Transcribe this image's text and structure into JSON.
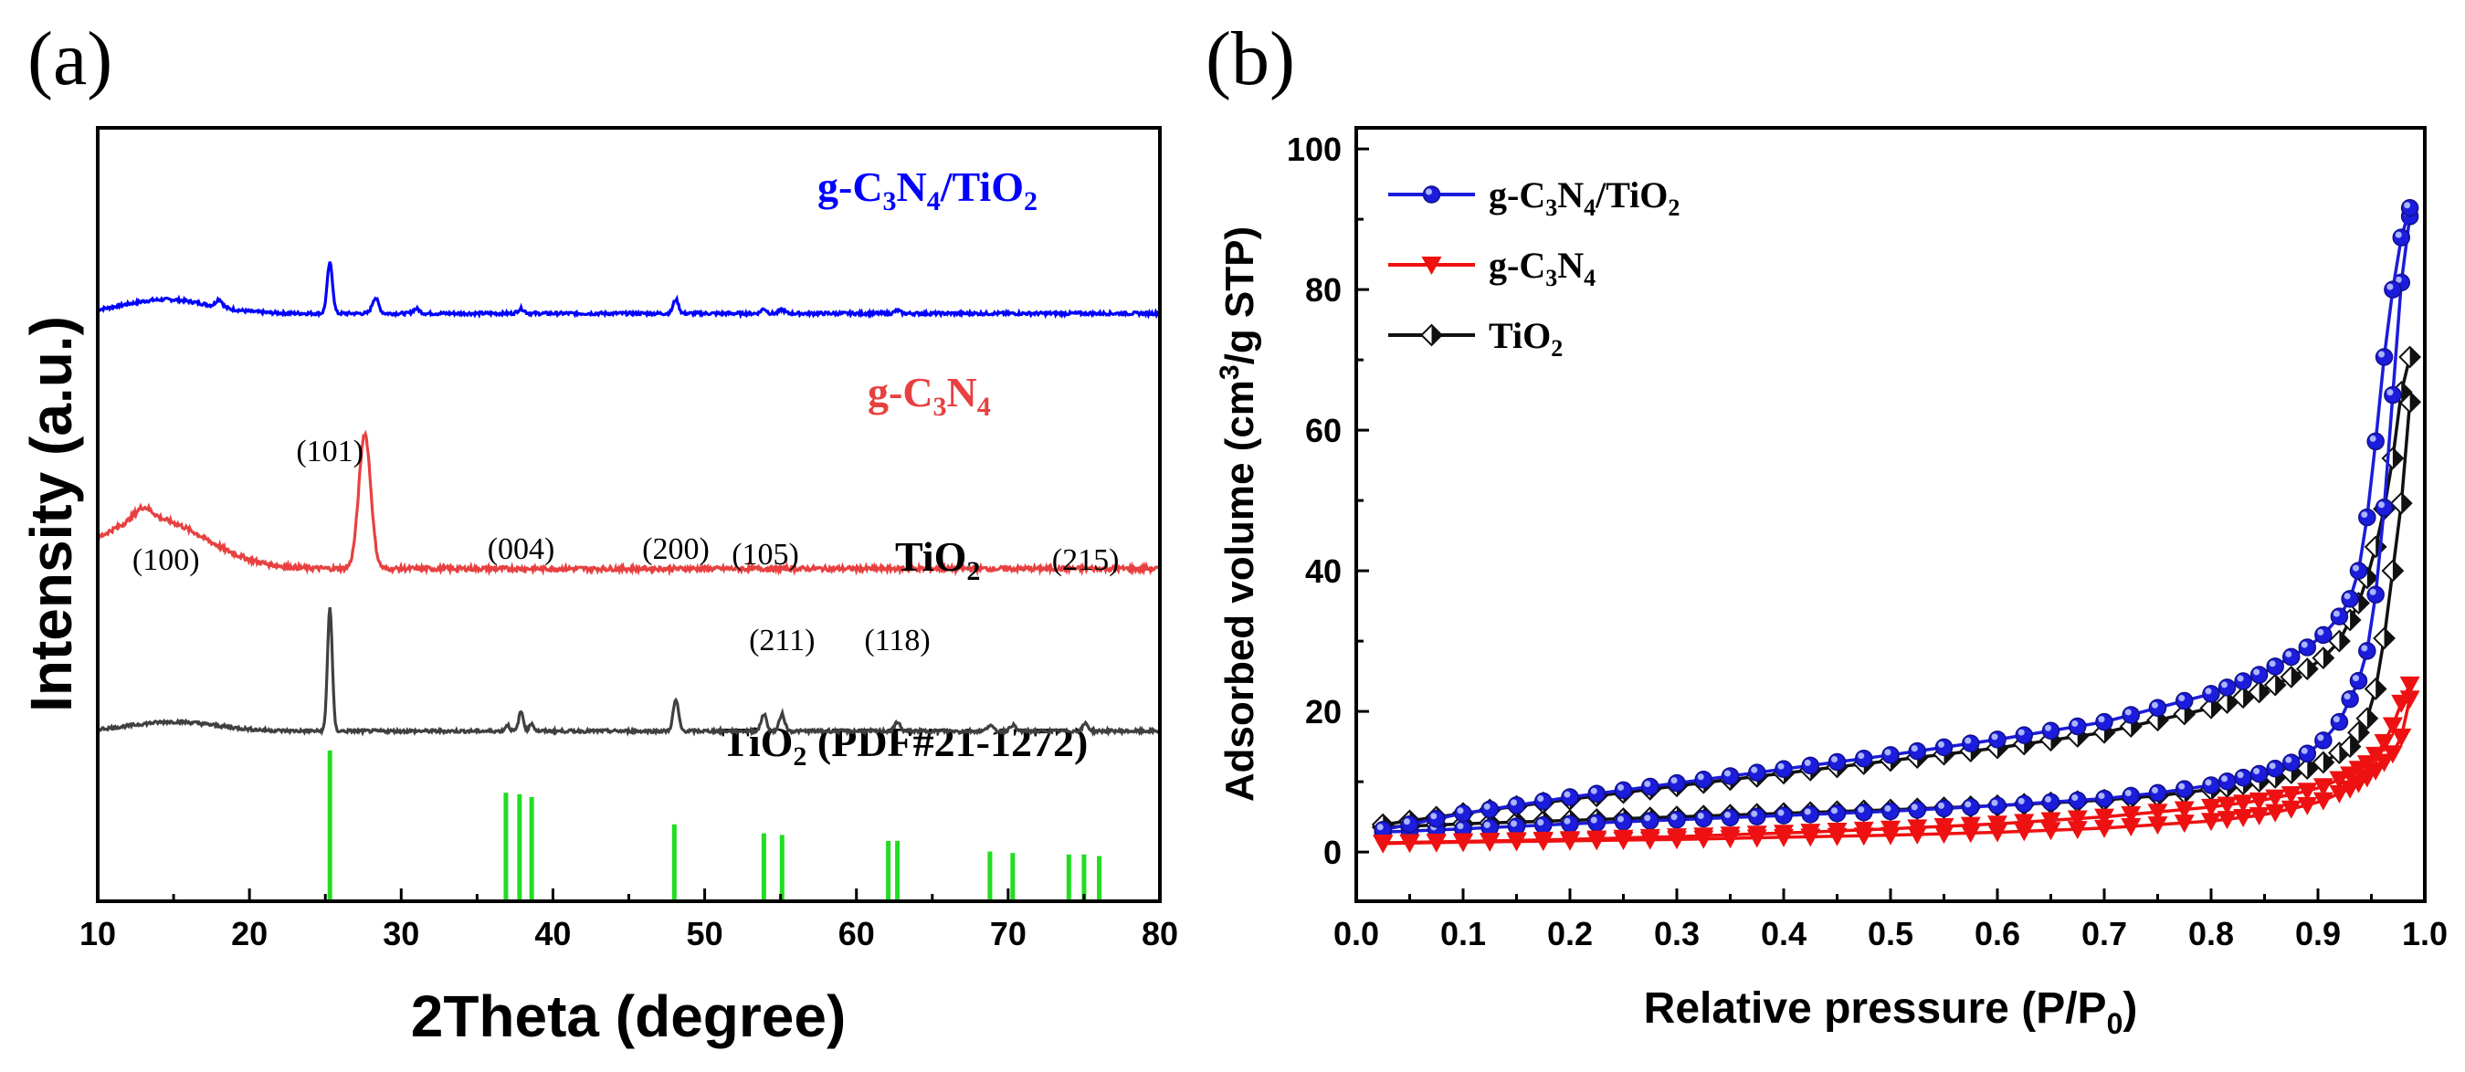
{
  "chart_data": [
    {
      "type": "line",
      "panel_label": "(a)",
      "title": "",
      "xlabel": "2Theta (degree)",
      "ylabel": "Intensity (a.u.)",
      "xlim": [
        10,
        80
      ],
      "xticks": [
        "10",
        "20",
        "30",
        "40",
        "50",
        "60",
        "70",
        "80"
      ],
      "series": [
        {
          "name": "g-C3N4/TiO2",
          "label_main": "g-C",
          "sub1": "3",
          "mid": "N",
          "sub2": "4",
          "tail": "/TiO",
          "sub3": "2",
          "color": "#0000ff",
          "baseline": 0.76,
          "hump": [
            14.5,
            0.018,
            4.0
          ],
          "peaks": [
            [
              25.3,
              0.065,
              0.25
            ],
            [
              28.3,
              0.02,
              0.3
            ],
            [
              18.0,
              0.01,
              0.3
            ],
            [
              31.0,
              0.006,
              0.3
            ],
            [
              37.9,
              0.006,
              0.3
            ],
            [
              48.1,
              0.018,
              0.25
            ],
            [
              53.9,
              0.006,
              0.25
            ],
            [
              55.1,
              0.005,
              0.25
            ],
            [
              62.7,
              0.004,
              0.25
            ]
          ]
        },
        {
          "name": "g-C3N4",
          "label_main": "g-C",
          "sub1": "3",
          "mid": "N",
          "sub2": "4",
          "tail": "",
          "sub3": "",
          "color": "#e84040",
          "baseline": 0.43,
          "hump": [
            13.5,
            0.065,
            5.0
          ],
          "peaks": [
            [
              27.6,
              0.175,
              0.55
            ],
            [
              13.0,
              0.015,
              0.8
            ]
          ]
        },
        {
          "name": "TiO2",
          "label_main": "TiO",
          "sub1": "2",
          "mid": "",
          "sub2": "",
          "tail": "",
          "sub3": "",
          "color": "#404040",
          "baseline": 0.22,
          "hump": [
            15.0,
            0.012,
            4.0
          ],
          "peaks": [
            [
              25.3,
              0.16,
              0.22
            ],
            [
              37.0,
              0.008,
              0.2
            ],
            [
              37.9,
              0.025,
              0.22
            ],
            [
              38.6,
              0.01,
              0.2
            ],
            [
              48.1,
              0.04,
              0.25
            ],
            [
              53.9,
              0.022,
              0.25
            ],
            [
              55.1,
              0.022,
              0.25
            ],
            [
              62.7,
              0.012,
              0.25
            ],
            [
              68.8,
              0.008,
              0.25
            ],
            [
              70.3,
              0.008,
              0.25
            ],
            [
              75.1,
              0.01,
              0.25
            ]
          ]
        }
      ],
      "reference": {
        "name": "TiO2 (PDF#21-1272)",
        "label_main": "TiO",
        "sub": "2",
        "label_rest": " (PDF#21-1272)",
        "color": "#22dd22",
        "lines": [
          [
            25.3,
            1.0
          ],
          [
            36.9,
            0.72
          ],
          [
            37.8,
            0.71
          ],
          [
            38.6,
            0.69
          ],
          [
            48.0,
            0.51
          ],
          [
            53.9,
            0.45
          ],
          [
            55.1,
            0.44
          ],
          [
            62.1,
            0.4
          ],
          [
            62.7,
            0.4
          ],
          [
            68.8,
            0.33
          ],
          [
            70.3,
            0.32
          ],
          [
            74.0,
            0.31
          ],
          [
            75.0,
            0.31
          ],
          [
            76.0,
            0.3
          ]
        ]
      },
      "peak_labels": [
        {
          "text": "(101)",
          "x": 25.3,
          "pos": "above-main"
        },
        {
          "text": "(100)",
          "x": 14.5,
          "pos": "above"
        },
        {
          "text": "(004)",
          "x": 37.9,
          "pos": "above"
        },
        {
          "text": "(200)",
          "x": 48.1,
          "pos": "above"
        },
        {
          "text": "(105)",
          "x": 54.0,
          "pos": "above"
        },
        {
          "text": "(215)",
          "x": 75.1,
          "pos": "above"
        },
        {
          "text": "(211)",
          "x": 55.1,
          "pos": "below"
        },
        {
          "text": "(118)",
          "x": 62.7,
          "pos": "below"
        }
      ]
    },
    {
      "type": "line",
      "panel_label": "(b)",
      "title": "",
      "xlabel_main": "Relative pressure (P/P",
      "xlabel_sub": "0",
      "xlabel_tail": ")",
      "ylabel_main": "Adsorbed volume (cm",
      "ylabel_sup": "3",
      "ylabel_tail": "/g STP)",
      "xlim": [
        0.0,
        1.0
      ],
      "ylim": [
        -7,
        103
      ],
      "xticks": [
        "0.0",
        "0.1",
        "0.2",
        "0.3",
        "0.4",
        "0.5",
        "0.6",
        "0.7",
        "0.8",
        "0.9",
        "1.0"
      ],
      "yticks": [
        "0",
        "20",
        "40",
        "60",
        "80",
        "100"
      ],
      "ytick_values": [
        0,
        20,
        40,
        60,
        80,
        100
      ],
      "series": [
        {
          "name": "g-C3N4/TiO2",
          "label_main": "g-C",
          "sub1": "3",
          "mid": "N",
          "sub2": "4",
          "tail": "/TiO",
          "sub3": "2",
          "color": "#1c1cdc",
          "marker": "circle",
          "adsorption": [
            [
              0.02,
              2.8
            ],
            [
              0.1,
              3.3
            ],
            [
              0.2,
              4.0
            ],
            [
              0.3,
              4.6
            ],
            [
              0.4,
              5.2
            ],
            [
              0.5,
              5.8
            ],
            [
              0.6,
              6.6
            ],
            [
              0.7,
              7.6
            ],
            [
              0.75,
              8.4
            ],
            [
              0.8,
              9.5
            ],
            [
              0.85,
              11.3
            ],
            [
              0.88,
              13.0
            ],
            [
              0.9,
              15.0
            ],
            [
              0.92,
              18.5
            ],
            [
              0.94,
              25.0
            ],
            [
              0.95,
              31.0
            ],
            [
              0.96,
              45.0
            ],
            [
              0.97,
              65.0
            ],
            [
              0.98,
              85.0
            ],
            [
              0.99,
              94.0
            ]
          ],
          "desorption": [
            [
              0.99,
              94.0
            ],
            [
              0.985,
              91.0
            ],
            [
              0.98,
              89.0
            ],
            [
              0.975,
              85.0
            ],
            [
              0.97,
              80.0
            ],
            [
              0.96,
              68.0
            ],
            [
              0.95,
              52.0
            ],
            [
              0.94,
              41.0
            ],
            [
              0.93,
              36.0
            ],
            [
              0.92,
              33.5
            ],
            [
              0.9,
              30.0
            ],
            [
              0.85,
              25.5
            ],
            [
              0.8,
              22.5
            ],
            [
              0.7,
              18.5
            ],
            [
              0.6,
              16.0
            ],
            [
              0.5,
              13.8
            ],
            [
              0.4,
              11.8
            ],
            [
              0.3,
              9.8
            ],
            [
              0.2,
              7.8
            ],
            [
              0.1,
              5.5
            ],
            [
              0.02,
              3.0
            ]
          ]
        },
        {
          "name": "g-C3N4",
          "label_main": "g-C",
          "sub1": "3",
          "mid": "N",
          "sub2": "4",
          "tail": "",
          "sub3": "",
          "color": "#ee1111",
          "marker": "triangle-down",
          "adsorption": [
            [
              0.02,
              1.2
            ],
            [
              0.1,
              1.4
            ],
            [
              0.2,
              1.6
            ],
            [
              0.3,
              1.8
            ],
            [
              0.4,
              2.1
            ],
            [
              0.5,
              2.4
            ],
            [
              0.6,
              2.8
            ],
            [
              0.7,
              3.4
            ],
            [
              0.8,
              4.4
            ],
            [
              0.85,
              5.3
            ],
            [
              0.9,
              7.0
            ],
            [
              0.93,
              9.0
            ],
            [
              0.95,
              11.0
            ],
            [
              0.97,
              14.0
            ],
            [
              0.98,
              17.0
            ],
            [
              0.99,
              25.0
            ]
          ],
          "desorption": [
            [
              0.99,
              25.0
            ],
            [
              0.98,
              22.0
            ],
            [
              0.97,
              18.0
            ],
            [
              0.96,
              15.0
            ],
            [
              0.95,
              13.0
            ],
            [
              0.93,
              11.0
            ],
            [
              0.9,
              9.0
            ],
            [
              0.85,
              7.4
            ],
            [
              0.8,
              6.4
            ],
            [
              0.7,
              5.0
            ],
            [
              0.6,
              4.0
            ],
            [
              0.5,
              3.3
            ],
            [
              0.4,
              2.7
            ],
            [
              0.3,
              2.2
            ],
            [
              0.2,
              1.8
            ],
            [
              0.1,
              1.5
            ],
            [
              0.02,
              1.3
            ]
          ]
        },
        {
          "name": "TiO2",
          "label_main": "TiO",
          "sub1": "2",
          "mid": "",
          "sub2": "",
          "tail": "",
          "sub3": "",
          "color": "#111111",
          "marker": "half-diamond",
          "adsorption": [
            [
              0.02,
              3.5
            ],
            [
              0.1,
              4.0
            ],
            [
              0.2,
              4.5
            ],
            [
              0.3,
              5.0
            ],
            [
              0.4,
              5.5
            ],
            [
              0.5,
              6.0
            ],
            [
              0.6,
              6.6
            ],
            [
              0.7,
              7.4
            ],
            [
              0.75,
              8.0
            ],
            [
              0.8,
              8.9
            ],
            [
              0.85,
              10.2
            ],
            [
              0.9,
              12.3
            ],
            [
              0.93,
              15.0
            ],
            [
              0.95,
              20.0
            ],
            [
              0.96,
              28.0
            ],
            [
              0.97,
              40.0
            ],
            [
              0.98,
              52.0
            ],
            [
              0.99,
              72.0
            ]
          ],
          "desorption": [
            [
              0.99,
              72.0
            ],
            [
              0.985,
              70.0
            ],
            [
              0.98,
              67.0
            ],
            [
              0.975,
              63.0
            ],
            [
              0.97,
              56.0
            ],
            [
              0.96,
              47.0
            ],
            [
              0.95,
              41.0
            ],
            [
              0.94,
              36.0
            ],
            [
              0.93,
              33.0
            ],
            [
              0.92,
              30.0
            ],
            [
              0.9,
              26.8
            ],
            [
              0.85,
              23.0
            ],
            [
              0.8,
              20.5
            ],
            [
              0.7,
              17.0
            ],
            [
              0.6,
              14.8
            ],
            [
              0.5,
              13.0
            ],
            [
              0.4,
              11.2
            ],
            [
              0.3,
              9.4
            ],
            [
              0.2,
              7.5
            ],
            [
              0.1,
              5.5
            ],
            [
              0.02,
              3.8
            ]
          ]
        }
      ]
    }
  ]
}
